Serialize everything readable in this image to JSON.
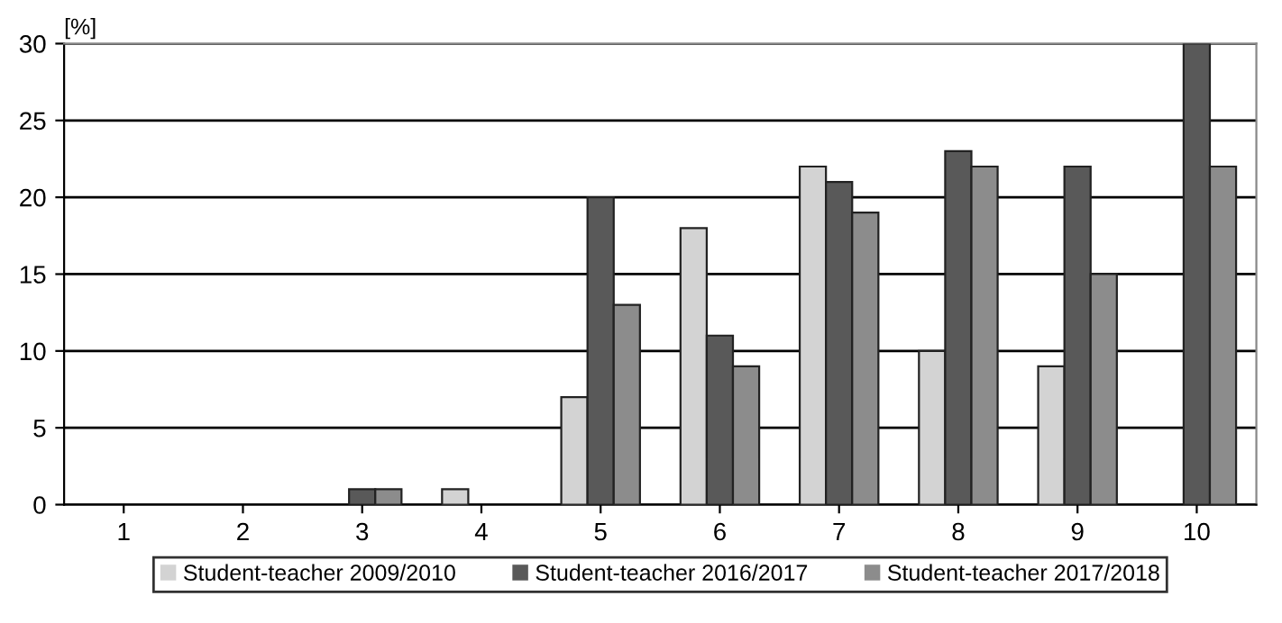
{
  "chart_data": {
    "type": "bar",
    "ylabel": "[%]",
    "categories": [
      "1",
      "2",
      "3",
      "4",
      "5",
      "6",
      "7",
      "8",
      "9",
      "10"
    ],
    "series": [
      {
        "name": "Student-teacher 2009/2010",
        "color": "#d3d3d3",
        "values": [
          0,
          0,
          0,
          1,
          7,
          18,
          22,
          10,
          9,
          0
        ]
      },
      {
        "name": "Student-teacher 2016/2017",
        "color": "#595959",
        "values": [
          0,
          0,
          1,
          0,
          20,
          11,
          21,
          23,
          22,
          30
        ]
      },
      {
        "name": "Student-teacher 2017/2018",
        "color": "#8c8c8c",
        "values": [
          0,
          0,
          1,
          0,
          13,
          9,
          19,
          22,
          15,
          22
        ]
      }
    ],
    "ylim": [
      0,
      30
    ],
    "yticks": [
      0,
      5,
      10,
      15,
      20,
      25,
      30
    ],
    "grid": "y",
    "legend": "bottom"
  }
}
